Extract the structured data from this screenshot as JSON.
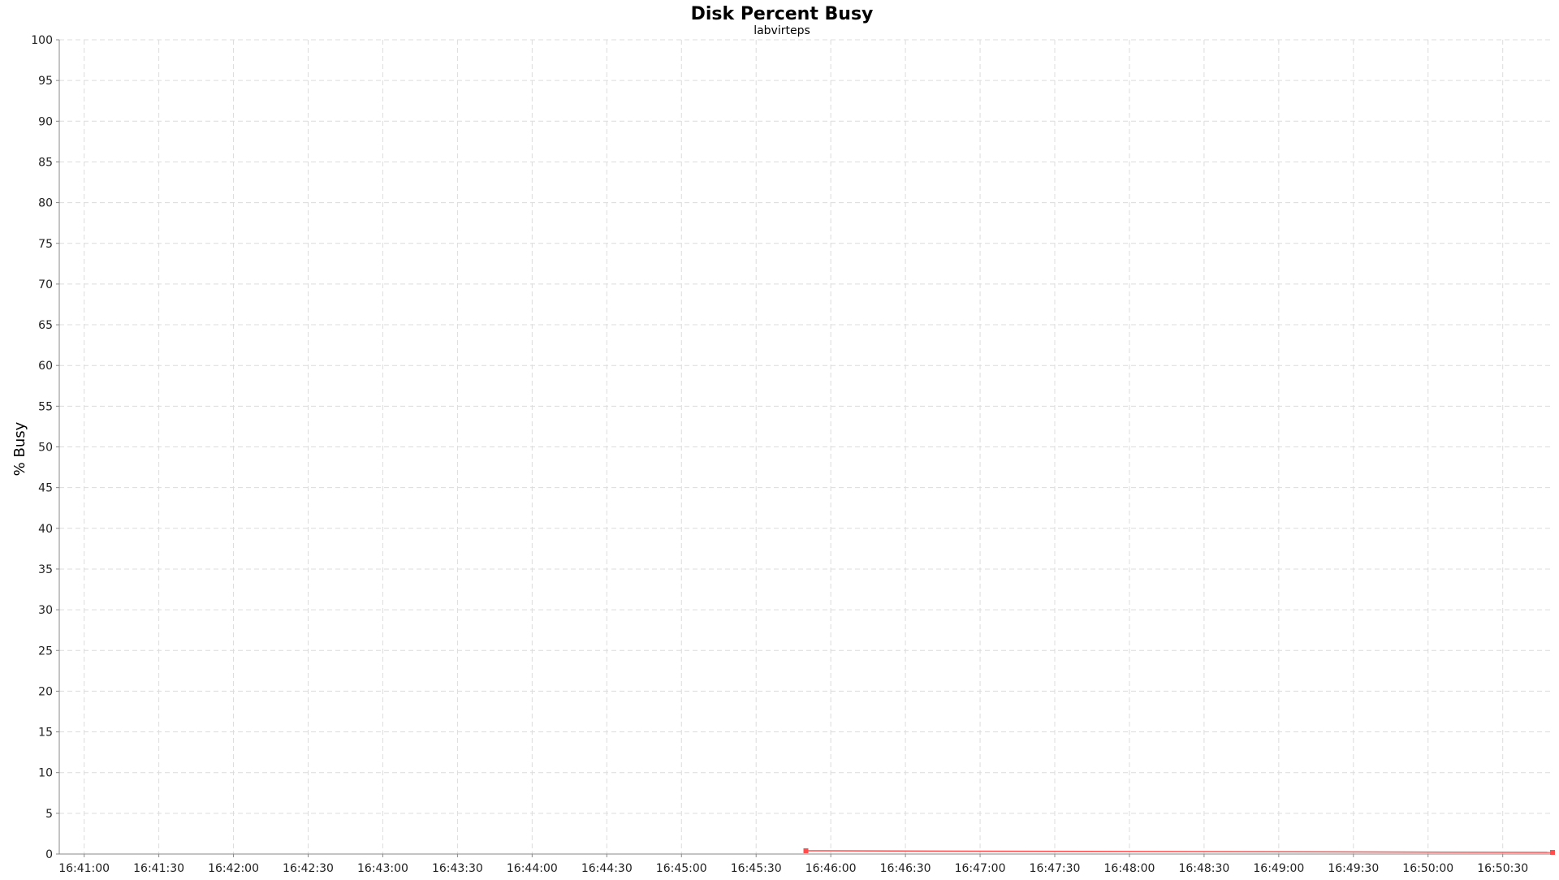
{
  "chart_data": {
    "type": "line",
    "title": "Disk Percent Busy",
    "subtitle": "labvirteps",
    "ylabel": "% Busy",
    "xlabel": "",
    "ylim": [
      0,
      100
    ],
    "yticks": [
      0,
      5,
      10,
      15,
      20,
      25,
      30,
      35,
      40,
      45,
      50,
      55,
      60,
      65,
      70,
      75,
      80,
      85,
      90,
      95,
      100
    ],
    "xlim": [
      "16:40:50",
      "16:50:50"
    ],
    "xticks": [
      "16:41:00",
      "16:41:30",
      "16:42:00",
      "16:42:30",
      "16:43:00",
      "16:43:30",
      "16:44:00",
      "16:44:30",
      "16:45:00",
      "16:45:30",
      "16:46:00",
      "16:46:30",
      "16:47:00",
      "16:47:30",
      "16:48:00",
      "16:48:30",
      "16:49:00",
      "16:49:30",
      "16:50:00",
      "16:50:30"
    ],
    "grid": true,
    "legend": "none",
    "series": [
      {
        "color": "#ff4d4d",
        "points": [
          {
            "x": "16:45:50",
            "y": 0.4
          },
          {
            "x": "16:50:50",
            "y": 0.2
          }
        ]
      }
    ]
  }
}
